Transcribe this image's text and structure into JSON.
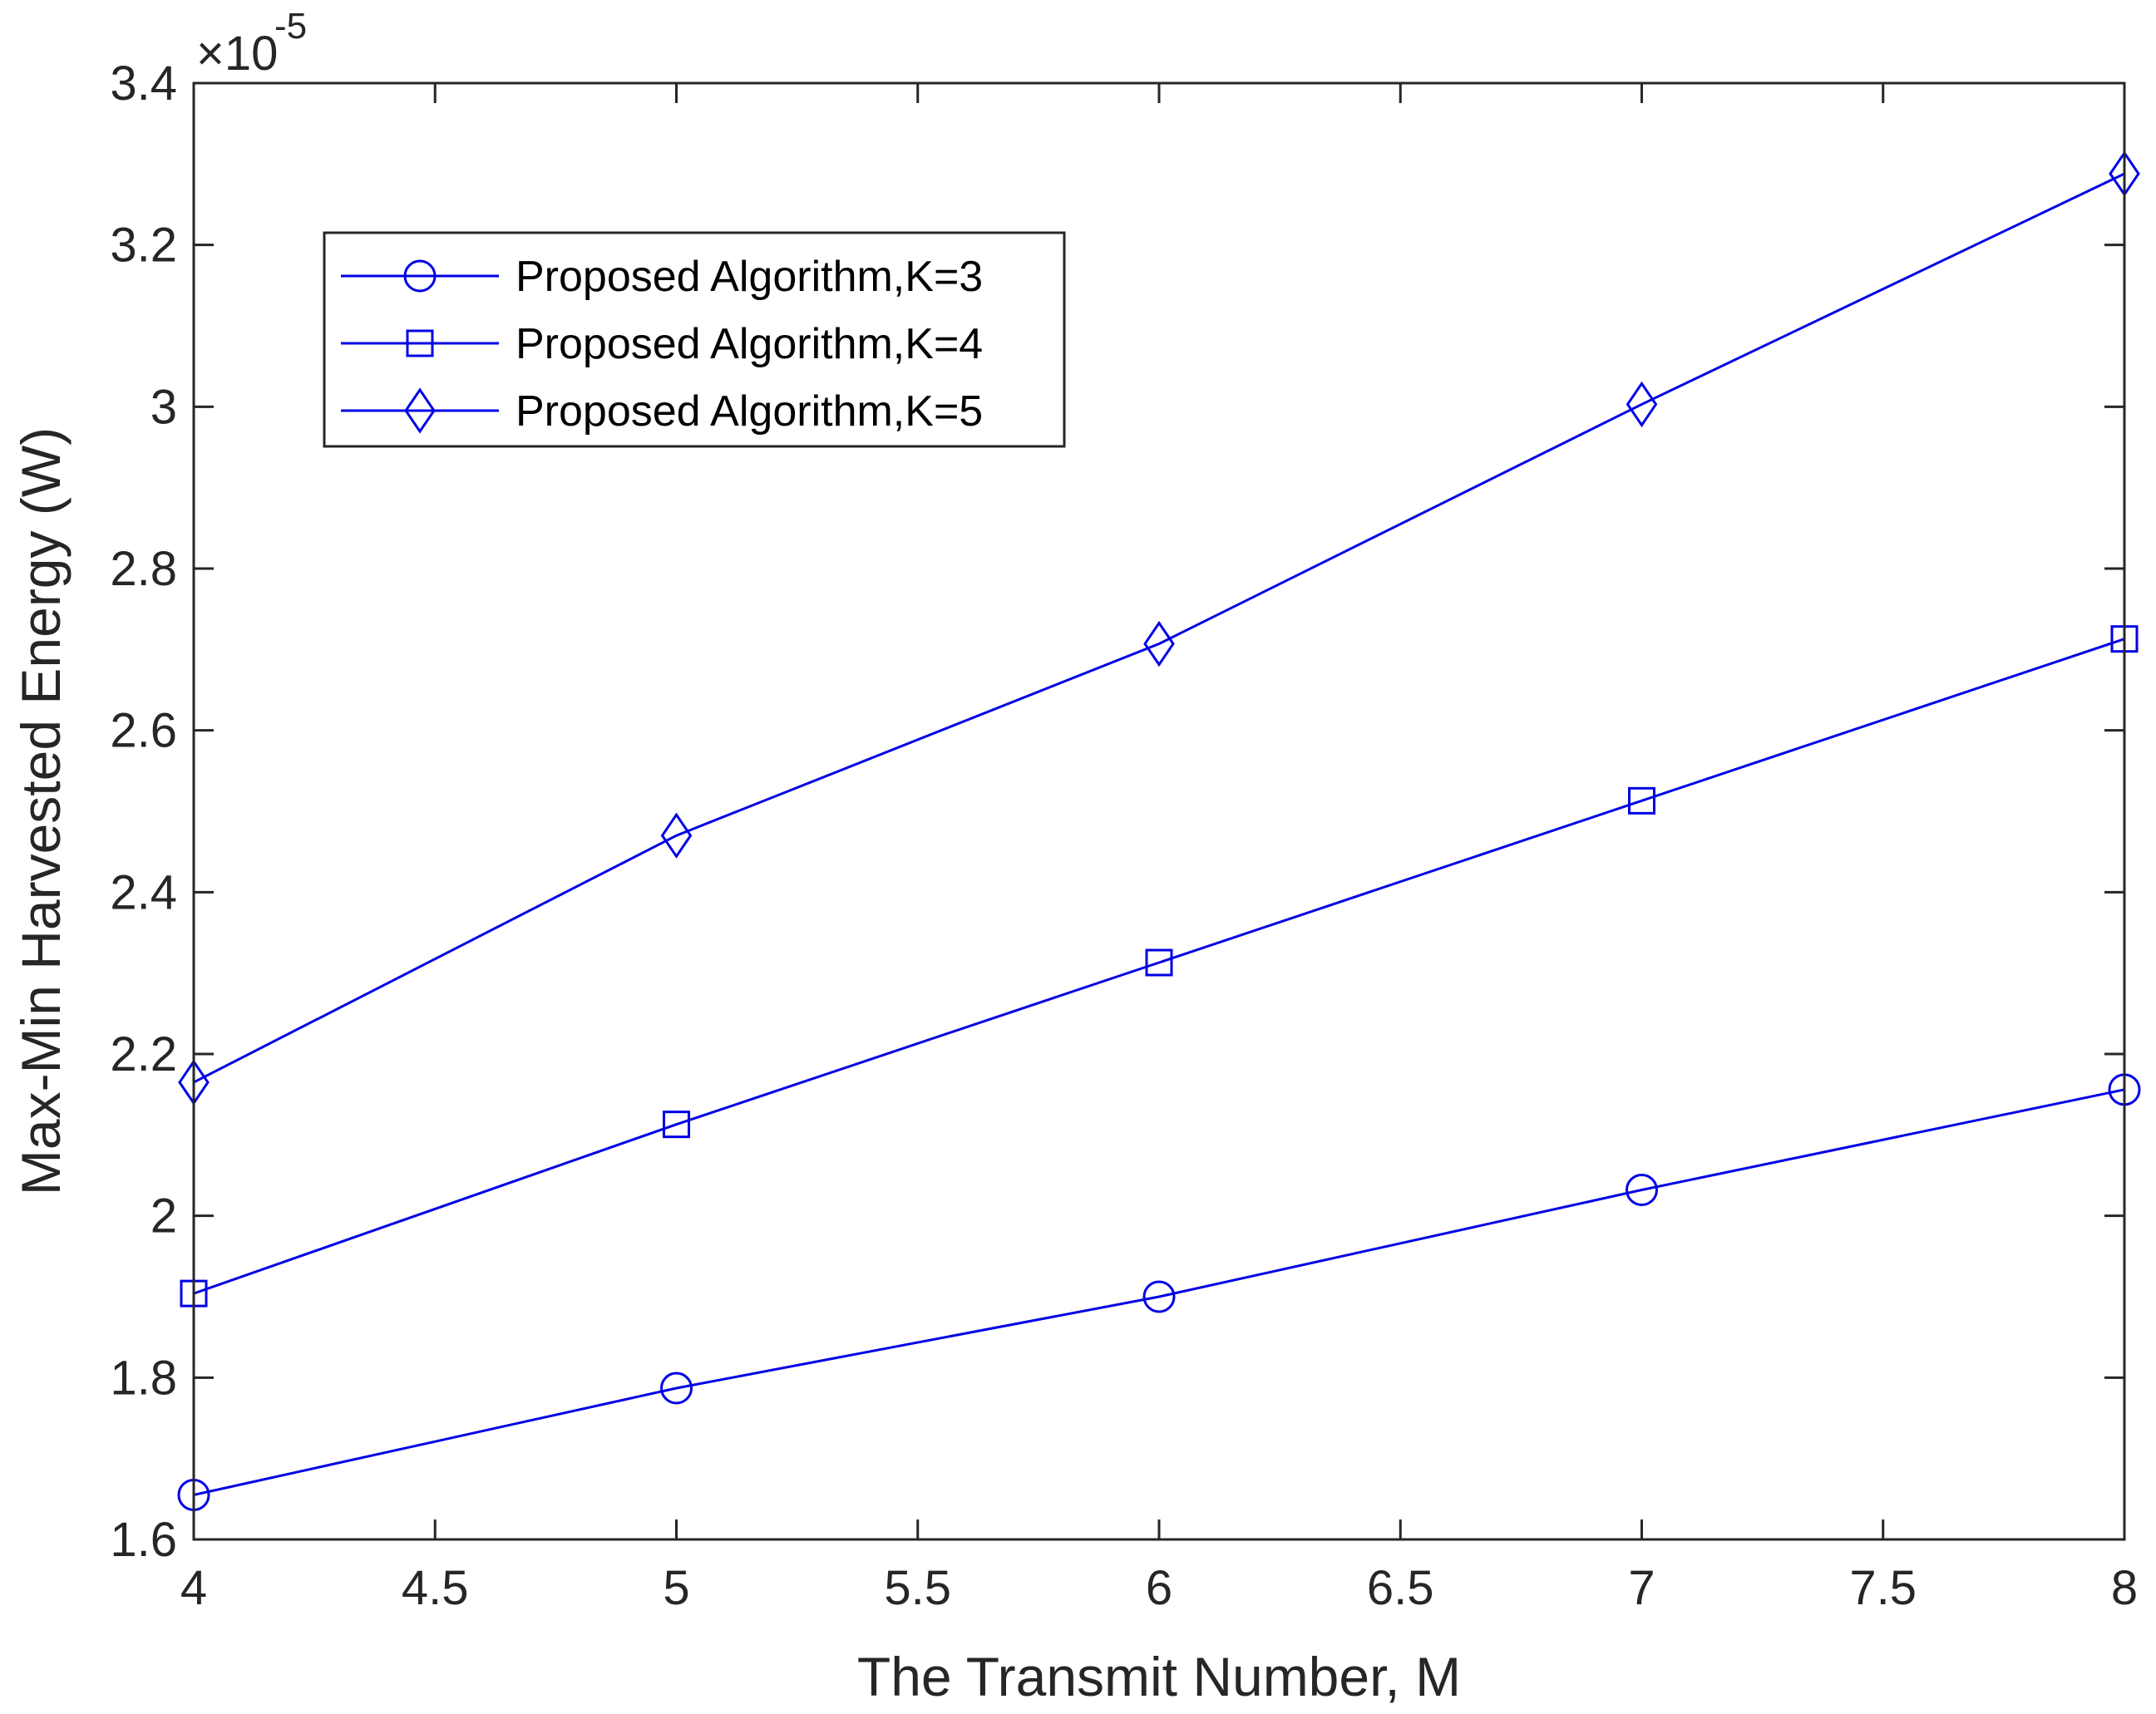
{
  "chart_data": {
    "type": "line",
    "title": "",
    "xlabel": "The Transmit Number, M",
    "ylabel": "Max-Min Harvested Energy (W)",
    "y_exponent_label": "×10",
    "y_exponent_power": "-5",
    "xlim": [
      4,
      8
    ],
    "ylim": [
      1.6,
      3.4
    ],
    "x_ticks": [
      4,
      4.5,
      5,
      5.5,
      6,
      6.5,
      7,
      7.5,
      8
    ],
    "x_tick_labels": [
      "4",
      "4.5",
      "5",
      "5.5",
      "6",
      "6.5",
      "7",
      "7.5",
      "8"
    ],
    "y_ticks": [
      1.6,
      1.8,
      2.0,
      2.2,
      2.4,
      2.6,
      2.8,
      3.0,
      3.2,
      3.4
    ],
    "y_tick_labels": [
      "1.6",
      "1.8",
      "2",
      "2.2",
      "2.4",
      "2.6",
      "2.8",
      "3",
      "3.2",
      "3.4"
    ],
    "grid": false,
    "legend_position": "top-left",
    "line_color": "#0000e6",
    "x": [
      4,
      5,
      6,
      7,
      8
    ],
    "series": [
      {
        "name": "Proposed Algorithm,K=3",
        "marker": "circle",
        "values": [
          1.655,
          1.787,
          1.9,
          2.032,
          2.156
        ]
      },
      {
        "name": "Proposed Algorithm,K=4",
        "marker": "square",
        "values": [
          1.904,
          2.113,
          2.313,
          2.513,
          2.713
        ]
      },
      {
        "name": "Proposed Algorithm,K=5",
        "marker": "diamond",
        "values": [
          2.165,
          2.47,
          2.707,
          3.003,
          3.288
        ]
      }
    ]
  }
}
